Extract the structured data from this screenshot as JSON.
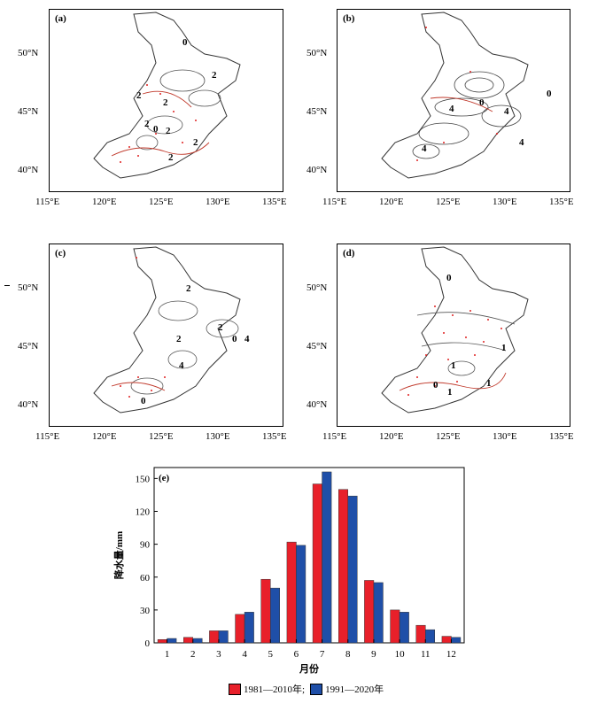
{
  "maps": [
    {
      "label": "(a)",
      "contour_labels": [
        "0",
        "2",
        "2",
        "2",
        "2",
        "0",
        "2",
        "2",
        "2"
      ]
    },
    {
      "label": "(b)",
      "contour_labels": [
        "0",
        "4",
        "0",
        "4",
        "4",
        "4"
      ]
    },
    {
      "label": "(c)",
      "contour_labels": [
        "2",
        "2",
        "2",
        "0",
        "4",
        "4",
        "0"
      ]
    },
    {
      "label": "(d)",
      "contour_labels": [
        "0",
        "1",
        "1",
        "1",
        "0",
        "1"
      ]
    }
  ],
  "map_axes": {
    "lon_labels": [
      "115°E",
      "120°E",
      "125°E",
      "130°E",
      "135°E"
    ],
    "lat_labels": [
      "50°N",
      "45°N",
      "40°N"
    ]
  },
  "chart_data": {
    "type": "bar",
    "panel_label": "(e)",
    "categories": [
      "1",
      "2",
      "3",
      "4",
      "5",
      "6",
      "7",
      "8",
      "9",
      "10",
      "11",
      "12"
    ],
    "series": [
      {
        "name": "1981—2010年;",
        "color": "#e8202a",
        "values": [
          3,
          5,
          11,
          26,
          58,
          92,
          145,
          140,
          57,
          30,
          16,
          6
        ]
      },
      {
        "name": "1991—2020年",
        "color": "#1f4fa8",
        "values": [
          4,
          4,
          11,
          28,
          50,
          89,
          156,
          134,
          55,
          28,
          12,
          5
        ]
      }
    ],
    "xlabel": "月份",
    "ylabel": "降水量/mm",
    "ylim": [
      0,
      160
    ],
    "yticks": [
      "0",
      "30",
      "60",
      "90",
      "120",
      "150"
    ],
    "legend_position": "bottom"
  }
}
